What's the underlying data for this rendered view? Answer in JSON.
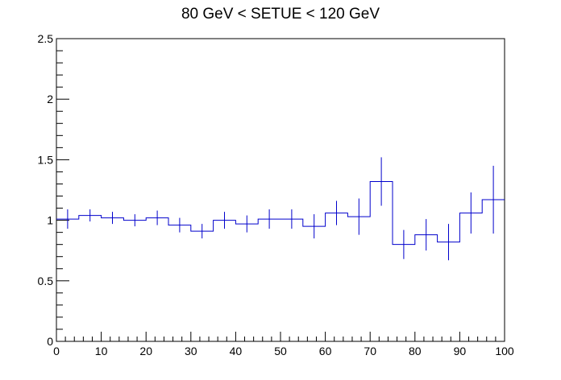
{
  "chart_data": {
    "type": "line",
    "title": "80 GeV < SETUE < 120 GeV",
    "xlabel": "",
    "ylabel": "",
    "xlim": [
      0,
      100
    ],
    "ylim": [
      0,
      2.5
    ],
    "x_ticks": [
      0,
      10,
      20,
      30,
      40,
      50,
      60,
      70,
      80,
      90,
      100
    ],
    "y_ticks": [
      0,
      0.5,
      1,
      1.5,
      2,
      2.5
    ],
    "x_tick_labels": [
      "0",
      "10",
      "20",
      "30",
      "40",
      "50",
      "60",
      "70",
      "80",
      "90",
      "100"
    ],
    "y_tick_labels": [
      "0",
      "0.5",
      "1",
      "1.5",
      "2",
      "2.5"
    ],
    "grid": false,
    "series": [
      {
        "style": "step-histogram with error bars",
        "color": "#0000cc",
        "bin_edges": [
          0,
          5,
          10,
          15,
          20,
          25,
          30,
          35,
          40,
          45,
          50,
          55,
          60,
          65,
          70,
          75,
          80,
          85,
          90,
          95,
          100
        ],
        "values": [
          1.01,
          1.04,
          1.02,
          1.0,
          1.02,
          0.96,
          0.91,
          1.0,
          0.97,
          1.01,
          1.01,
          0.95,
          1.06,
          1.03,
          1.32,
          0.8,
          0.88,
          0.82,
          1.06,
          1.17
        ],
        "errors": [
          0.08,
          0.05,
          0.05,
          0.05,
          0.06,
          0.06,
          0.06,
          0.07,
          0.07,
          0.08,
          0.08,
          0.1,
          0.1,
          0.15,
          0.2,
          0.12,
          0.13,
          0.15,
          0.17,
          0.28
        ]
      }
    ]
  }
}
